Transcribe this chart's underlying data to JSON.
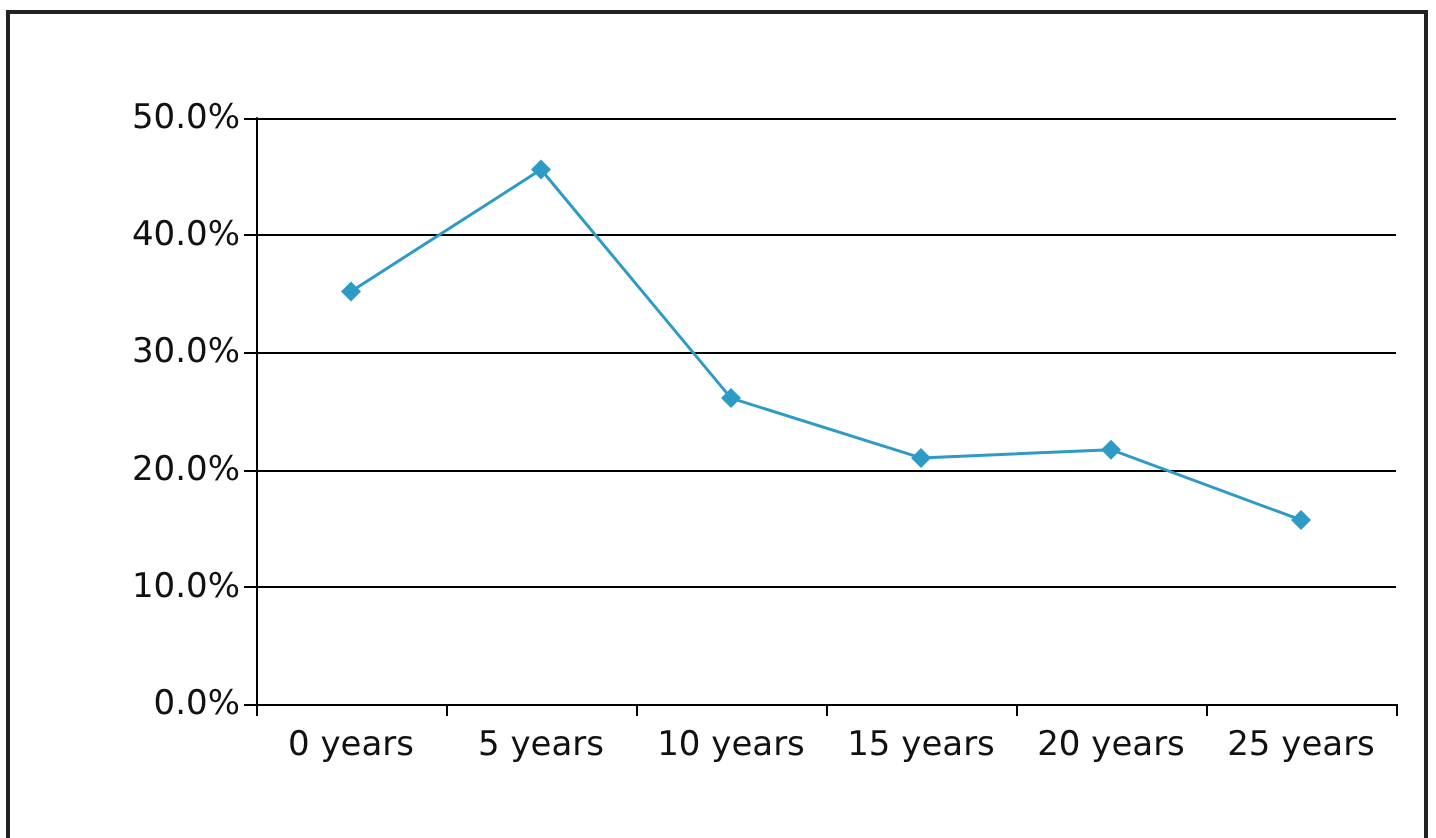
{
  "chart_data": {
    "type": "line",
    "categories": [
      "0 years",
      "5 years",
      "10 years",
      "15 years",
      "20 years",
      "25 years"
    ],
    "series": [
      {
        "color": "#2e9bc6",
        "values": [
          35.2,
          45.6,
          26.1,
          21.0,
          21.7,
          15.7
        ]
      }
    ],
    "ylim": [
      0,
      50
    ],
    "yticks": [
      {
        "value": 0,
        "label": "0.0%"
      },
      {
        "value": 10,
        "label": "10.0%"
      },
      {
        "value": 20,
        "label": "20.0%"
      },
      {
        "value": 30,
        "label": "30.0%"
      },
      {
        "value": 40,
        "label": "40.0%"
      },
      {
        "value": 50,
        "label": "50.0%"
      }
    ],
    "grid": "y",
    "marker": "diamond",
    "line_style": "solid"
  }
}
